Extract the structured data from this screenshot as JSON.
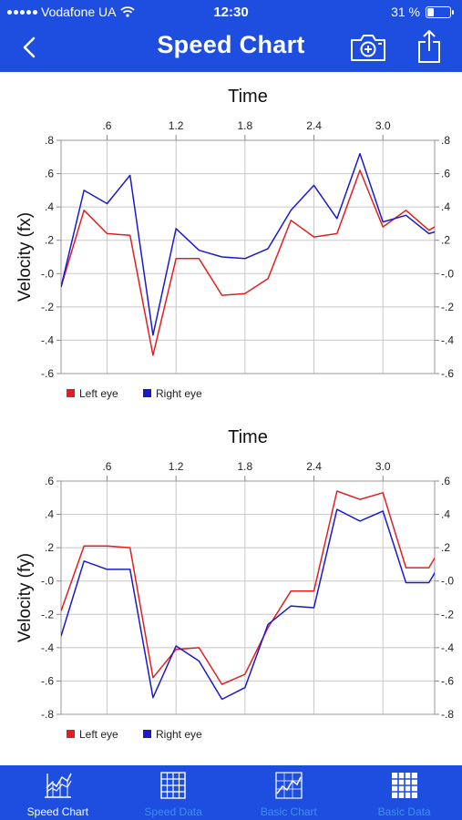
{
  "status_bar": {
    "carrier": "Vodafone UA",
    "time": "12:30",
    "battery_text": "31 %",
    "battery_level": 0.31
  },
  "nav": {
    "title": "Speed Chart",
    "back_icon": "chevron-left-icon",
    "camera_icon": "camera-icon",
    "share_icon": "share-icon"
  },
  "colors": {
    "accent": "#1d4ee0",
    "left_eye": "#e02020",
    "right_eye": "#1a1acc",
    "tab_inactive": "#3f8fee"
  },
  "chart_data": [
    {
      "type": "line",
      "title": "Time",
      "xlabel": "Time",
      "ylabel": "Velocity (fx)",
      "xlim": [
        0.2,
        3.45
      ],
      "ylim": [
        -0.6,
        0.8
      ],
      "xticks": [
        0.6,
        1.2,
        1.8,
        2.4,
        3.0
      ],
      "xtick_labels": [
        ".6",
        "1.2",
        "1.8",
        "2.4",
        "3.0"
      ],
      "yticks": [
        -0.6,
        -0.4,
        -0.2,
        0.0,
        0.2,
        0.4,
        0.6,
        0.8
      ],
      "ytick_labels": [
        "-.6",
        "-.4",
        "-.2",
        "-.0",
        ".2",
        ".4",
        ".6",
        ".8"
      ],
      "grid": true,
      "legend": "bottom-left",
      "x": [
        0.2,
        0.4,
        0.6,
        0.8,
        1.0,
        1.2,
        1.4,
        1.6,
        1.8,
        2.0,
        2.2,
        2.4,
        2.6,
        2.8,
        3.0,
        3.2,
        3.4,
        3.6
      ],
      "series": [
        {
          "name": "Left eye",
          "color": "#e02020",
          "values": [
            -0.08,
            0.38,
            0.24,
            0.23,
            -0.49,
            0.09,
            0.09,
            -0.13,
            -0.12,
            -0.03,
            0.32,
            0.22,
            0.24,
            0.62,
            0.28,
            0.38,
            0.26,
            0.34
          ]
        },
        {
          "name": "Right eye",
          "color": "#1a1acc",
          "values": [
            -0.08,
            0.5,
            0.42,
            0.59,
            -0.37,
            0.27,
            0.14,
            0.1,
            0.09,
            0.15,
            0.38,
            0.53,
            0.33,
            0.72,
            0.31,
            0.35,
            0.24,
            0.28
          ]
        }
      ]
    },
    {
      "type": "line",
      "title": "Time",
      "xlabel": "Time",
      "ylabel": "Velocity (fy)",
      "xlim": [
        0.2,
        3.45
      ],
      "ylim": [
        -0.8,
        0.6
      ],
      "xticks": [
        0.6,
        1.2,
        1.8,
        2.4,
        3.0
      ],
      "xtick_labels": [
        ".6",
        "1.2",
        "1.8",
        "2.4",
        "3.0"
      ],
      "yticks": [
        -0.8,
        -0.6,
        -0.4,
        -0.2,
        0.0,
        0.2,
        0.4,
        0.6
      ],
      "ytick_labels": [
        "-.8",
        "-.6",
        "-.4",
        "-.2",
        "-.0",
        ".2",
        ".4",
        ".6"
      ],
      "grid": true,
      "legend": "bottom-left",
      "x": [
        0.2,
        0.4,
        0.6,
        0.8,
        1.0,
        1.2,
        1.4,
        1.6,
        1.8,
        2.0,
        2.2,
        2.4,
        2.6,
        2.8,
        3.0,
        3.2,
        3.4,
        3.6
      ],
      "series": [
        {
          "name": "Left eye",
          "color": "#e02020",
          "values": [
            -0.18,
            0.21,
            0.21,
            0.2,
            -0.58,
            -0.41,
            -0.4,
            -0.62,
            -0.56,
            -0.28,
            -0.06,
            -0.06,
            0.54,
            0.49,
            0.53,
            0.08,
            0.08,
            0.31
          ]
        },
        {
          "name": "Right eye",
          "color": "#1a1acc",
          "values": [
            -0.33,
            0.12,
            0.07,
            0.07,
            -0.7,
            -0.39,
            -0.48,
            -0.71,
            -0.64,
            -0.26,
            -0.15,
            -0.16,
            0.43,
            0.36,
            0.42,
            -0.01,
            -0.01,
            0.22
          ]
        }
      ]
    }
  ],
  "tabs": [
    {
      "label": "Speed Chart",
      "icon": "speed-chart-icon",
      "active": true
    },
    {
      "label": "Speed Data",
      "icon": "grid-table-icon",
      "active": false
    },
    {
      "label": "Basic Chart",
      "icon": "line-chart-icon",
      "active": false
    },
    {
      "label": "Basic Data",
      "icon": "data-grid-icon",
      "active": false
    }
  ]
}
